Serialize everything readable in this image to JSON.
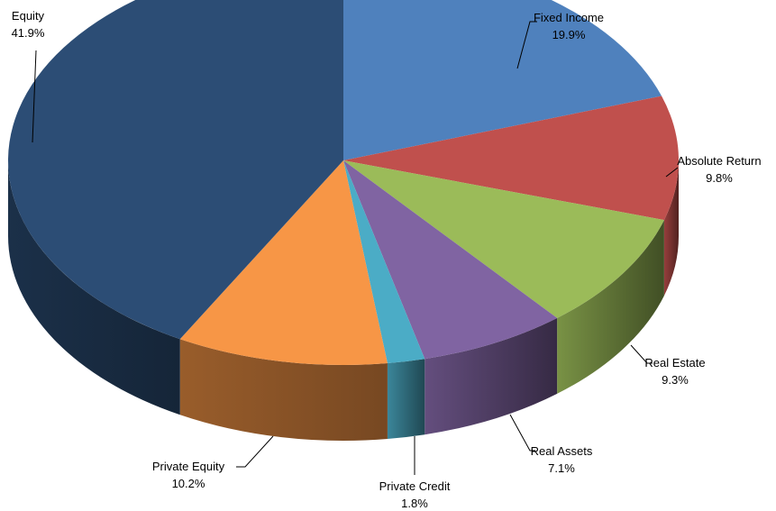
{
  "chart_data": {
    "type": "pie",
    "style": "3d",
    "categories": [
      "Fixed Income",
      "Absolute Return",
      "Real Estate",
      "Real Assets",
      "Private Credit",
      "Private Equity",
      "Equity"
    ],
    "values": [
      19.9,
      9.8,
      9.3,
      7.1,
      1.8,
      10.2,
      41.9
    ],
    "value_labels": [
      "19.9%",
      "9.8%",
      "9.3%",
      "7.1%",
      "1.8%",
      "10.2%",
      "41.9%"
    ],
    "colors": [
      "#4F81BD",
      "#C0504D",
      "#9BBB59",
      "#8064A2",
      "#4BACC6",
      "#F79646",
      "#2C4D75"
    ],
    "legend": "none"
  }
}
